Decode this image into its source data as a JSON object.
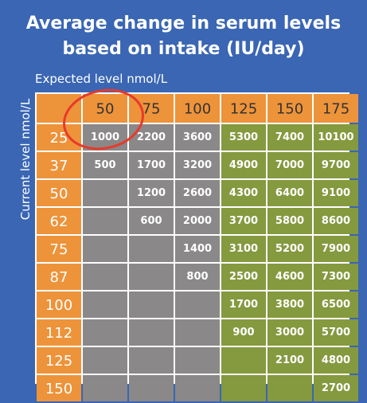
{
  "chart_data": {
    "type": "heatmap",
    "title": [
      "Average change in serum levels",
      "based on intake (IU/day)"
    ],
    "xlabel": "Expected level nmol/L",
    "ylabel": "Current level nmol/L",
    "x": [
      "50",
      "75",
      "100",
      "125",
      "150",
      "175"
    ],
    "y": [
      "25",
      "37",
      "50",
      "62",
      "75",
      "87",
      "100",
      "112",
      "125",
      "150"
    ],
    "values": [
      [
        1000,
        2200,
        3600,
        5300,
        7400,
        10100
      ],
      [
        500,
        1700,
        3200,
        4900,
        7000,
        9700
      ],
      [
        null,
        1200,
        2600,
        4300,
        6400,
        9100
      ],
      [
        null,
        600,
        2000,
        3700,
        5800,
        8600
      ],
      [
        null,
        null,
        1400,
        3100,
        5200,
        7900
      ],
      [
        null,
        null,
        800,
        2500,
        4600,
        7300
      ],
      [
        null,
        null,
        null,
        1700,
        3800,
        6500
      ],
      [
        null,
        null,
        null,
        900,
        3000,
        5700
      ],
      [
        null,
        null,
        null,
        null,
        2100,
        4800
      ],
      [
        null,
        null,
        null,
        null,
        null,
        2700
      ]
    ],
    "color_groups": {
      "gray_columns": [
        "50",
        "75",
        "100"
      ],
      "green_columns": [
        "125",
        "150",
        "175"
      ]
    },
    "highlighted_cell": {
      "row": "25",
      "column": "50"
    }
  },
  "colors": {
    "background": "#3a66b3",
    "header_orange": "#ed933a",
    "gray_cell": "#8a8888",
    "green_cell": "#85993f",
    "grid": "#ffffff",
    "highlight_ring": "#e8392b",
    "text_light": "#ffffff",
    "text_dark": "#333333"
  }
}
